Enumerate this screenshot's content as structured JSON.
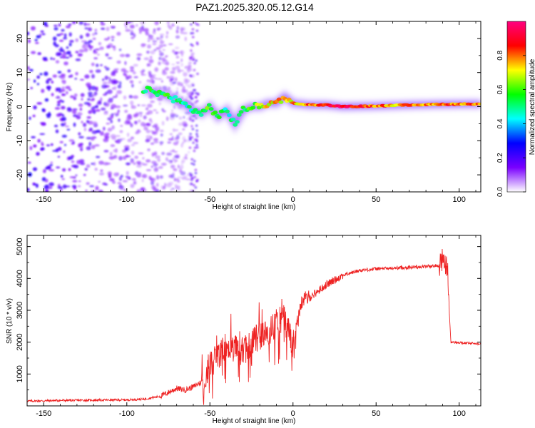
{
  "title": "PAZ1.2025.320.05.12.G14",
  "chart_data": [
    {
      "type": "heatmap",
      "panel": "spectrogram",
      "xlabel": "Height of straight line (km)",
      "ylabel": "Frequency (Hz)",
      "xlim": [
        -160,
        113
      ],
      "ylim": [
        -25,
        25
      ],
      "xticks": [
        -150,
        -100,
        -50,
        0,
        50,
        100
      ],
      "yticks": [
        -20,
        -10,
        0,
        10,
        20
      ],
      "colorbar": {
        "label": "Normalized spectral amplitude",
        "range": [
          0.0,
          1.0
        ],
        "ticks": [
          0.0,
          0.2,
          0.4,
          0.6,
          0.8
        ],
        "tick_labels": [
          "0.0",
          "0.2",
          "0.4",
          "0.6",
          "0.8"
        ],
        "colors": [
          "#ffffff",
          "#7a00ff",
          "#0000ff",
          "#00ffff",
          "#00ff00",
          "#ffff00",
          "#ff0000",
          "#ff0080"
        ]
      },
      "ridge": {
        "x": [
          -90,
          -80,
          -70,
          -60,
          -55,
          -50,
          -45,
          -40,
          -35,
          -30,
          -25,
          -20,
          -15,
          -10,
          -5,
          0,
          10,
          20,
          30,
          50,
          70,
          90,
          113
        ],
        "freq": [
          5,
          4,
          2,
          -1,
          -2,
          0,
          -3,
          -1,
          -5,
          -1,
          0,
          0,
          1,
          1,
          3,
          1,
          0.5,
          0.5,
          0,
          0.2,
          0.5,
          0.7,
          0.8
        ],
        "amplitude": [
          0.5,
          0.55,
          0.5,
          0.45,
          0.5,
          0.6,
          0.5,
          0.45,
          0.5,
          0.55,
          0.6,
          0.65,
          0.7,
          0.75,
          0.7,
          0.75,
          0.8,
          0.85,
          0.95,
          0.8,
          0.75,
          0.8,
          0.8
        ]
      },
      "noise_region_km": [
        -160,
        -60
      ]
    },
    {
      "type": "line",
      "panel": "snr",
      "xlabel": "Height of straight line (km)",
      "ylabel": "SNR (10 * v/v)",
      "xlim": [
        -160,
        113
      ],
      "ylim": [
        0,
        5350
      ],
      "xticks": [
        -150,
        -100,
        -50,
        0,
        50,
        100
      ],
      "yticks": [
        1000,
        2000,
        3000,
        4000,
        5000
      ],
      "color": "#ee2222",
      "series": [
        {
          "name": "SNR",
          "x": [
            -160,
            -140,
            -120,
            -100,
            -90,
            -80,
            -75,
            -70,
            -65,
            -60,
            -55,
            -50,
            -45,
            -40,
            -35,
            -30,
            -25,
            -20,
            -15,
            -10,
            -5,
            0,
            5,
            10,
            15,
            20,
            30,
            40,
            50,
            60,
            70,
            80,
            88,
            90,
            92,
            93,
            94,
            95,
            100,
            113
          ],
          "y": [
            150,
            170,
            180,
            190,
            210,
            300,
            420,
            550,
            500,
            600,
            750,
            1300,
            1500,
            1900,
            1800,
            1700,
            2000,
            2200,
            2300,
            2500,
            2700,
            1900,
            3300,
            3400,
            3600,
            3800,
            4100,
            4250,
            4300,
            4320,
            4350,
            4380,
            4400,
            4600,
            4400,
            4300,
            3000,
            2000,
            1980,
            1950
          ]
        }
      ]
    }
  ]
}
